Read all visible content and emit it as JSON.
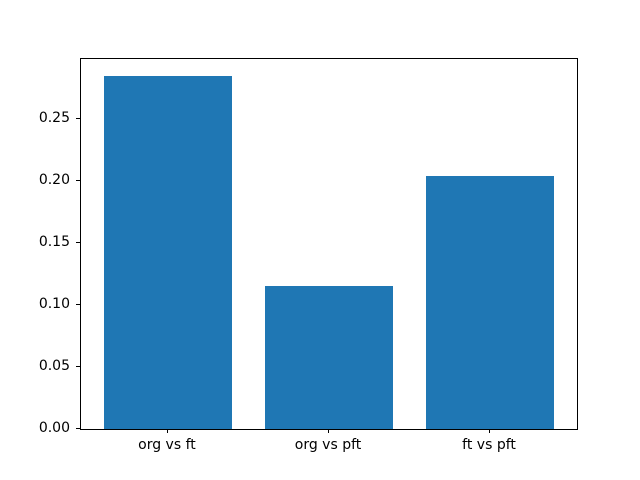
{
  "chart_data": {
    "type": "bar",
    "title": "",
    "xlabel": "",
    "ylabel": "",
    "categories": [
      "org vs ft",
      "org vs pft",
      "ft vs pft"
    ],
    "values": [
      0.284,
      0.115,
      0.204
    ],
    "ylim": [
      0,
      0.298
    ],
    "yticks": [
      0.0,
      0.05,
      0.1,
      0.15,
      0.2,
      0.25
    ],
    "ytick_labels": [
      "0.00",
      "0.05",
      "0.10",
      "0.15",
      "0.20",
      "0.25"
    ],
    "bar_width_units": 0.8,
    "x_margin_units": 0.54,
    "bar_color": "#1f77b4",
    "spine_color": "#000000",
    "background_color": "#ffffff",
    "grid": false,
    "legend": null
  }
}
